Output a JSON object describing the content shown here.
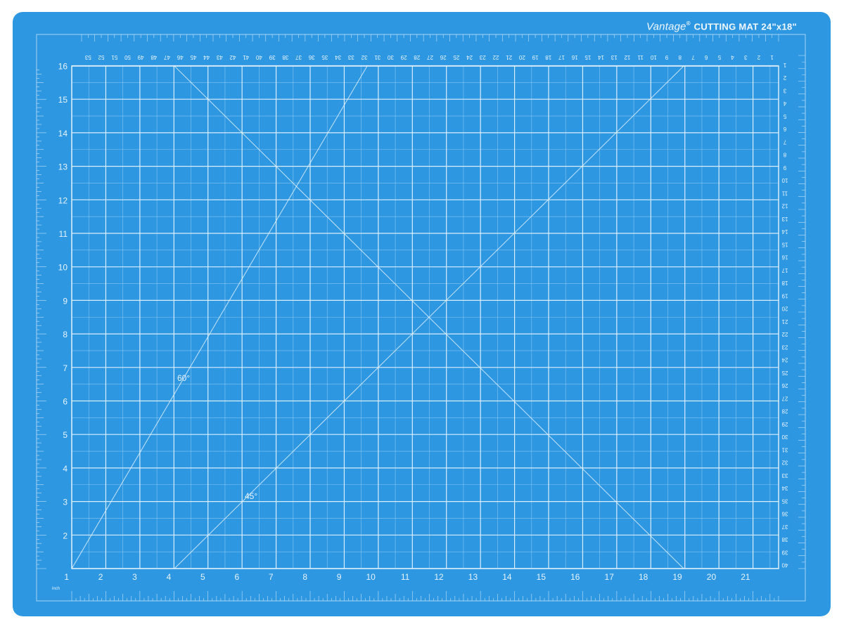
{
  "product": {
    "brand": "Vantage",
    "trademark": "®",
    "title": "CUTTING MAT 24\"x18\""
  },
  "colors": {
    "mat": "#2d97e2",
    "mat_edge": "#2a92dd",
    "grid_line": "#c6e3f8",
    "grid_major": "#e4f2fc",
    "label": "#e8f4fd",
    "background": "#ffffff"
  },
  "units_label": "inch",
  "scales": {
    "bottom_inches": [
      "1",
      "2",
      "3",
      "4",
      "5",
      "6",
      "7",
      "8",
      "9",
      "10",
      "11",
      "12",
      "13",
      "14",
      "15",
      "16",
      "17",
      "18",
      "19",
      "20",
      "21"
    ],
    "left_inches": [
      "1",
      "2",
      "3",
      "4",
      "5",
      "6",
      "7",
      "8",
      "9",
      "10",
      "11",
      "12",
      "13",
      "14",
      "15",
      "16"
    ],
    "top_cm": [
      "53",
      "52",
      "51",
      "50",
      "49",
      "48",
      "47",
      "46",
      "45",
      "44",
      "43",
      "42",
      "41",
      "40",
      "39",
      "38",
      "37",
      "36",
      "35",
      "34",
      "33",
      "32",
      "31",
      "30",
      "29",
      "28",
      "27",
      "26",
      "25",
      "24",
      "23",
      "22",
      "21",
      "20",
      "19",
      "18",
      "17",
      "16",
      "15",
      "14",
      "13",
      "12",
      "11",
      "10",
      "9",
      "8",
      "7",
      "6",
      "5",
      "4",
      "3",
      "2",
      "1"
    ],
    "right_cm": [
      "1",
      "2",
      "3",
      "4",
      "5",
      "6",
      "7",
      "8",
      "9",
      "10",
      "11",
      "12",
      "13",
      "14",
      "15",
      "16",
      "17",
      "18",
      "19",
      "20",
      "21",
      "22",
      "23",
      "24",
      "25",
      "26",
      "27",
      "28",
      "29",
      "30",
      "31",
      "32",
      "33",
      "34",
      "35",
      "36",
      "37",
      "38",
      "39",
      "40"
    ]
  },
  "angle_labels": {
    "a60": "60°",
    "a45": "45°"
  },
  "icons": [
    "vantage-logo-icon"
  ]
}
